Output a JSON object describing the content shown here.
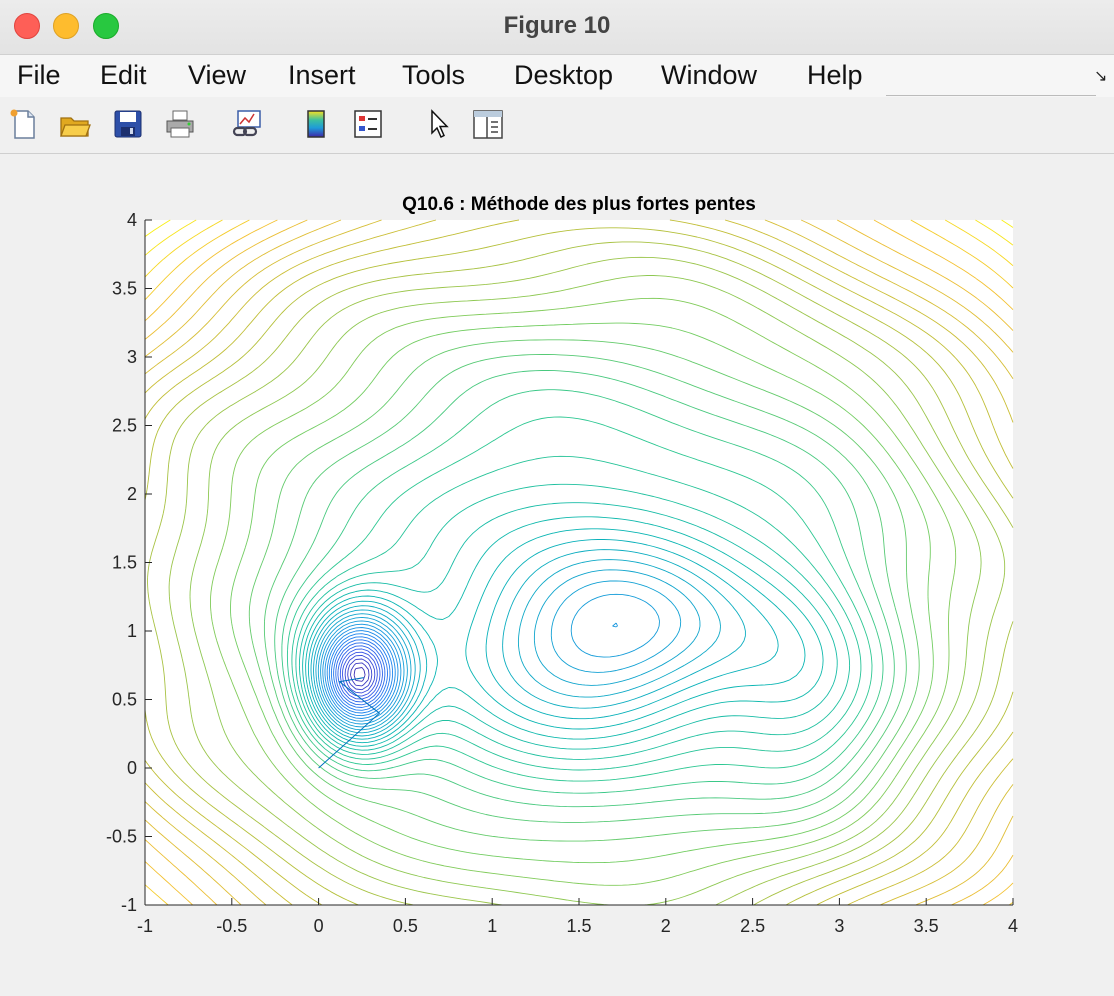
{
  "window": {
    "title": "Figure 10"
  },
  "menubar": {
    "items": [
      "File",
      "Edit",
      "View",
      "Insert",
      "Tools",
      "Desktop",
      "Window",
      "Help"
    ]
  },
  "toolbar": {
    "buttons": [
      "new-figure-icon",
      "open-file-icon",
      "save-icon",
      "print-icon",
      "link-plot-icon",
      "colorbar-icon",
      "legend-icon",
      "pointer-icon",
      "property-inspector-icon"
    ]
  },
  "chart_data": {
    "type": "contour",
    "title": "Q10.6 : Méthode des plus fortes pentes",
    "xlabel": "",
    "ylabel": "",
    "xlim": [
      -1,
      4
    ],
    "ylim": [
      -1,
      4
    ],
    "xticks": [
      "-1",
      "-0.5",
      "0",
      "0.5",
      "1",
      "1.5",
      "2",
      "2.5",
      "3",
      "3.5",
      "4"
    ],
    "yticks": [
      "-1",
      "-0.5",
      "0",
      "0.5",
      "1",
      "1.5",
      "2",
      "2.5",
      "3",
      "3.5",
      "4"
    ],
    "grid": false,
    "colormap": "parula",
    "colors": {
      "low": "#3e26a8",
      "mid": "#2eb7a1",
      "high": "#f9fb0e"
    },
    "contour_levels": 46,
    "minima": [
      {
        "x": 0.22,
        "y": 0.65
      },
      {
        "x": 1.72,
        "y": 1.0
      }
    ],
    "path": {
      "x": [
        0.0,
        0.35,
        0.12,
        0.26,
        0.22
      ],
      "y": [
        0.0,
        0.4,
        0.63,
        0.66,
        0.65
      ],
      "color": "#0072bd"
    }
  }
}
